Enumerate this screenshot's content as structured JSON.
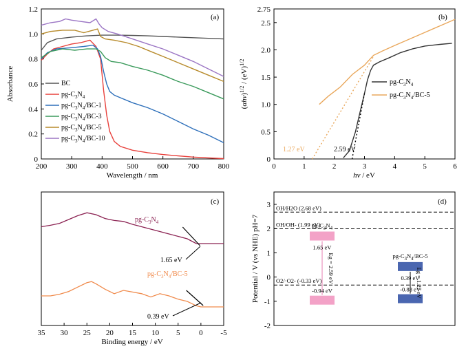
{
  "chart_data": [
    {
      "type": "line",
      "panel_label": "(a)",
      "xlabel": "Wavelength / nm",
      "ylabel": "Absorbance",
      "xlim": [
        200,
        800
      ],
      "ylim": [
        0,
        1.2
      ],
      "xticks": [
        "200",
        "300",
        "400",
        "500",
        "600",
        "700",
        "800"
      ],
      "yticks": [
        "0",
        "0.2",
        "0.4",
        "0.6",
        "0.8",
        "1.0",
        "1.2"
      ],
      "legend_position": "lower-left",
      "series": [
        {
          "name": "BC",
          "color": "#555555",
          "x": [
            200,
            220,
            250,
            300,
            350,
            400,
            450,
            500,
            550,
            600,
            650,
            700,
            750,
            800
          ],
          "y": [
            0.87,
            0.93,
            0.96,
            0.975,
            0.985,
            0.99,
            0.99,
            0.988,
            0.985,
            0.98,
            0.975,
            0.97,
            0.965,
            0.96
          ]
        },
        {
          "name": "pg-C3N4",
          "color": "#e8413c",
          "x": [
            200,
            220,
            240,
            270,
            300,
            330,
            360,
            380,
            395,
            405,
            415,
            425,
            440,
            460,
            500,
            550,
            600,
            650,
            700,
            750,
            800
          ],
          "y": [
            0.79,
            0.84,
            0.88,
            0.9,
            0.92,
            0.93,
            0.95,
            0.9,
            0.8,
            0.55,
            0.35,
            0.22,
            0.14,
            0.1,
            0.07,
            0.05,
            0.035,
            0.025,
            0.015,
            0.008,
            0.003
          ]
        },
        {
          "name": "pg-C3N4/BC-1",
          "color": "#2d6fba",
          "x": [
            200,
            220,
            250,
            300,
            340,
            370,
            385,
            395,
            405,
            415,
            425,
            440,
            460,
            500,
            550,
            600,
            650,
            700,
            750,
            800
          ],
          "y": [
            0.8,
            0.85,
            0.88,
            0.89,
            0.9,
            0.91,
            0.88,
            0.82,
            0.7,
            0.6,
            0.54,
            0.51,
            0.49,
            0.45,
            0.41,
            0.36,
            0.3,
            0.24,
            0.19,
            0.13
          ]
        },
        {
          "name": "pg-C3N4/BC-3",
          "color": "#3a9a5b",
          "x": [
            200,
            230,
            270,
            310,
            350,
            380,
            395,
            410,
            430,
            460,
            500,
            550,
            600,
            650,
            700,
            750,
            800
          ],
          "y": [
            0.81,
            0.86,
            0.88,
            0.87,
            0.88,
            0.88,
            0.86,
            0.81,
            0.78,
            0.77,
            0.74,
            0.71,
            0.67,
            0.62,
            0.58,
            0.53,
            0.48
          ]
        },
        {
          "name": "pg-C3N4/BC-5",
          "color": "#b78a2a",
          "x": [
            200,
            230,
            270,
            310,
            340,
            370,
            385,
            395,
            410,
            440,
            480,
            520,
            560,
            600,
            650,
            700,
            750,
            800
          ],
          "y": [
            1.0,
            1.02,
            1.03,
            1.03,
            1.01,
            1.03,
            1.04,
            0.98,
            0.96,
            0.95,
            0.93,
            0.9,
            0.86,
            0.82,
            0.77,
            0.72,
            0.67,
            0.62
          ]
        },
        {
          "name": "pg-C3N4/BC-10",
          "color": "#9b75c4",
          "x": [
            200,
            230,
            260,
            280,
            300,
            330,
            360,
            380,
            390,
            400,
            420,
            450,
            500,
            550,
            600,
            650,
            700,
            750,
            800
          ],
          "y": [
            1.07,
            1.09,
            1.1,
            1.12,
            1.11,
            1.1,
            1.09,
            1.12,
            1.08,
            1.05,
            1.02,
            1.0,
            0.96,
            0.92,
            0.88,
            0.83,
            0.78,
            0.72,
            0.66
          ]
        }
      ]
    },
    {
      "type": "line",
      "panel_label": "(b)",
      "xlabel": "hν / eV",
      "ylabel": "(αhν)^1/2 / (eV)^1/2",
      "xlim": [
        0,
        6
      ],
      "ylim": [
        0,
        2.75
      ],
      "xticks": [
        "0",
        "1",
        "2",
        "3",
        "4",
        "5",
        "6"
      ],
      "yticks": [
        "0",
        "0.5",
        "1.0",
        "1.5",
        "2.0",
        "2.5",
        "2.75"
      ],
      "legend_position": "right",
      "annotations": [
        "1.27 eV",
        "2.59 eV"
      ],
      "series": [
        {
          "name": "pg-C3N4",
          "color": "#333333",
          "x": [
            2.3,
            2.5,
            2.7,
            2.85,
            3.0,
            3.1,
            3.2,
            3.3,
            3.5,
            3.8,
            4.2,
            4.6,
            5.0,
            5.5,
            5.9
          ],
          "y": [
            0.02,
            0.15,
            0.5,
            0.85,
            1.2,
            1.45,
            1.62,
            1.72,
            1.78,
            1.85,
            1.95,
            2.02,
            2.07,
            2.1,
            2.12
          ]
        },
        {
          "name": "pg-C3N4/BC-5",
          "color": "#e9a75b",
          "x": [
            1.5,
            1.8,
            2.2,
            2.6,
            3.0,
            3.3,
            3.6,
            4.0,
            4.5,
            5.0,
            5.5,
            6.0
          ],
          "y": [
            1.0,
            1.15,
            1.32,
            1.55,
            1.72,
            1.9,
            1.98,
            2.08,
            2.2,
            2.32,
            2.44,
            2.56
          ]
        }
      ],
      "tangent_lines": [
        {
          "color": "#e9a75b",
          "x": [
            1.27,
            3.3
          ],
          "y": [
            0.0,
            1.88
          ]
        },
        {
          "color": "#000000",
          "x": [
            2.59,
            3.0
          ],
          "y": [
            0.0,
            1.2
          ]
        }
      ]
    },
    {
      "type": "line",
      "panel_label": "(c)",
      "xlabel": "Binding energy / eV",
      "xlim": [
        35,
        -5
      ],
      "xticks": [
        "35",
        "30",
        "25",
        "20",
        "15",
        "10",
        "5",
        "0",
        "-5"
      ],
      "series": [
        {
          "name": "pg-C3N4",
          "color": "#8b2252",
          "x": [
            35,
            33,
            31,
            29,
            27,
            25,
            23,
            21,
            19,
            17,
            15,
            13,
            11,
            9,
            7,
            5,
            3,
            2,
            1,
            0,
            -1,
            -5
          ],
          "y": [
            0.55,
            0.58,
            0.62,
            0.7,
            0.78,
            0.84,
            0.8,
            0.72,
            0.68,
            0.66,
            0.6,
            0.55,
            0.5,
            0.45,
            0.4,
            0.35,
            0.3,
            0.25,
            0.2,
            0.2,
            0.2,
            0.2
          ]
        },
        {
          "name": "pg-C3N4/BC-5",
          "color": "#f08a4b",
          "x": [
            35,
            33,
            31,
            29,
            27,
            25,
            24,
            23,
            21,
            19,
            17,
            15,
            13,
            11,
            9,
            7,
            5,
            3,
            2,
            1,
            0,
            -1,
            -5
          ],
          "y": [
            0.2,
            0.2,
            0.23,
            0.28,
            0.36,
            0.44,
            0.46,
            0.42,
            0.32,
            0.24,
            0.3,
            0.27,
            0.24,
            0.18,
            0.24,
            0.2,
            0.14,
            0.1,
            0.06,
            0.02,
            0.0,
            0.0,
            0.0
          ]
        }
      ],
      "annotations": [
        "1.65 eV",
        "0.39 eV"
      ]
    },
    {
      "type": "diagram",
      "panel_label": "(d)",
      "ylabel": "Potential / V (vs NHE) pH=7",
      "ylim": [
        -2,
        3
      ],
      "yticks": [
        "-2",
        "-1",
        "0",
        "1",
        "2",
        "3"
      ],
      "reference_levels": [
        {
          "label": "OH/H2O (2.68 eV)",
          "value": 2.68
        },
        {
          "label": "OH/OH- (1.99 eV)",
          "value": 1.99
        },
        {
          "label": "O2/·O2- (-0.33 eV)",
          "value": -0.33
        }
      ],
      "bands": [
        {
          "name": "pg-C3N4",
          "color": "#f3a2c7",
          "vb": 1.65,
          "cb": -0.94,
          "vb_label": "1.65 eV",
          "cb_label": "-0.94 eV",
          "eg_label": "2.59 eV"
        },
        {
          "name": "pg-C3N4/BC-5",
          "color": "#4a66b0",
          "vb": 0.39,
          "cb": -0.88,
          "vb_label": "0.39 eV",
          "cb_label": "-0.88 eV",
          "eg_label": "1.27 eV"
        }
      ]
    }
  ]
}
